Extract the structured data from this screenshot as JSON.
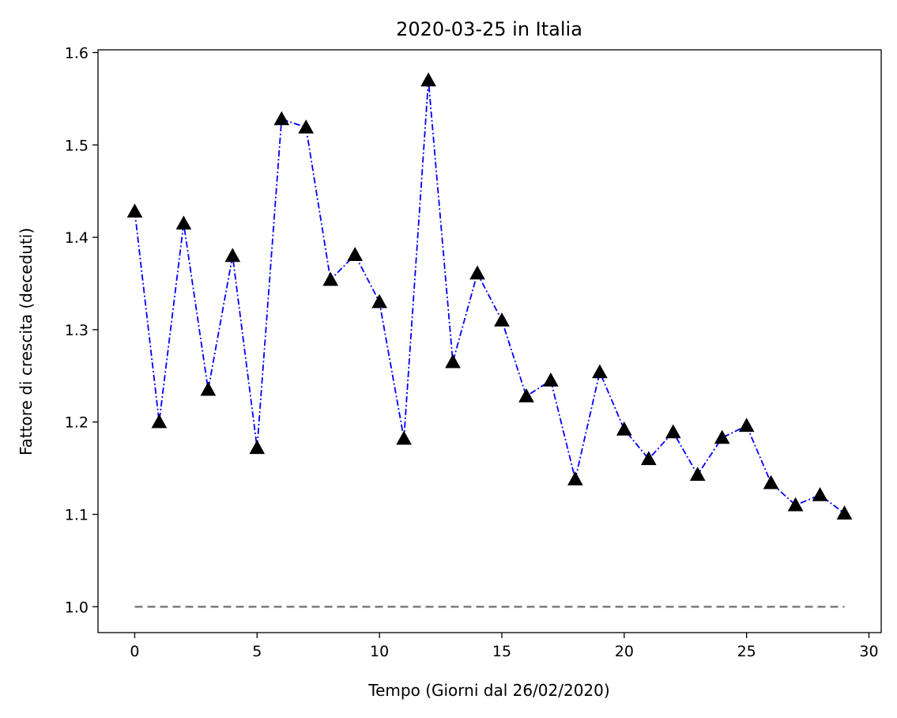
{
  "chart_data": {
    "type": "line",
    "title": "2020-03-25 in Italia",
    "xlabel": "Tempo (Giorni dal 26/02/2020)",
    "ylabel": "Fattore di crescita (deceduti)",
    "xlim": [
      -1.5,
      30.5
    ],
    "ylim": [
      0.972,
      1.603
    ],
    "xticks": [
      0,
      5,
      10,
      15,
      20,
      25,
      30
    ],
    "yticks": [
      1.0,
      1.1,
      1.2,
      1.3,
      1.4,
      1.5,
      1.6
    ],
    "grid": false,
    "series": [
      {
        "x": [
          0,
          1,
          2,
          3,
          4,
          5,
          6,
          7,
          8,
          9,
          10,
          11,
          12,
          13,
          14,
          15,
          16,
          17,
          18,
          19,
          20,
          21,
          22,
          23,
          24,
          25,
          26,
          27,
          28,
          29
        ],
        "y": [
          1.428,
          1.2,
          1.415,
          1.235,
          1.38,
          1.172,
          1.528,
          1.519,
          1.354,
          1.381,
          1.33,
          1.182,
          1.57,
          1.265,
          1.361,
          1.31,
          1.228,
          1.245,
          1.138,
          1.254,
          1.192,
          1.16,
          1.189,
          1.143,
          1.183,
          1.196,
          1.134,
          1.11,
          1.121,
          1.101
        ],
        "line_color": "#0000ff",
        "line_style": "dash-dot",
        "marker": "triangle-up",
        "marker_color": "#000000"
      },
      {
        "x": [
          0,
          29
        ],
        "y": [
          1.0,
          1.0
        ],
        "line_color": "#808080",
        "line_style": "dashed",
        "marker": "none"
      }
    ]
  }
}
